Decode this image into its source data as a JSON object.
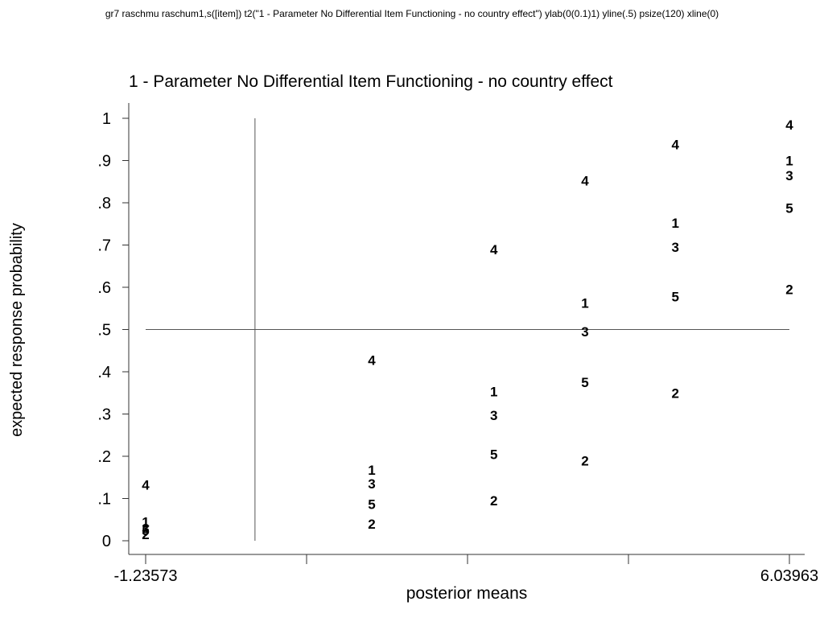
{
  "command_text": "gr7  raschmu raschum1,s([item]) t2(\"1 - Parameter No Differential Item Functioning - no country effect\") ylab(0(0.1)1) yline(.5) psize(120)  xline(0)",
  "chart_data": {
    "type": "scatter",
    "title": "1 - Parameter No Differential Item Functioning - no country effect",
    "xlabel": "posterior means",
    "ylabel": "expected response probability",
    "xlim": [
      -1.23573,
      6.03963
    ],
    "x_tick_labels": [
      "-1.23573",
      "6.03963"
    ],
    "x_minor_ticks": [
      0.58311,
      2.40195,
      4.22079
    ],
    "ylim": [
      0,
      1
    ],
    "y_tick_values": [
      0,
      0.1,
      0.2,
      0.3,
      0.4,
      0.5,
      0.6,
      0.7,
      0.8,
      0.9,
      1
    ],
    "y_tick_labels": [
      "0",
      ".1",
      ".2",
      ".3",
      ".4",
      ".5",
      ".6",
      ".7",
      ".8",
      ".9",
      "1"
    ],
    "yline": 0.5,
    "xline": 0,
    "grid": false,
    "marker_symbols": "item number",
    "series": [
      {
        "name": "1",
        "x": [
          -1.23573,
          1.32,
          2.7,
          3.73,
          4.75,
          6.03963
        ],
        "y": [
          0.045,
          0.168,
          0.353,
          0.563,
          0.752,
          0.9
        ]
      },
      {
        "name": "2",
        "x": [
          -1.23573,
          1.32,
          2.7,
          3.73,
          4.75,
          6.03963
        ],
        "y": [
          0.015,
          0.04,
          0.095,
          0.19,
          0.35,
          0.595
        ]
      },
      {
        "name": "3",
        "x": [
          -1.23573,
          1.32,
          2.7,
          3.73,
          4.75,
          6.03963
        ],
        "y": [
          0.03,
          0.135,
          0.297,
          0.495,
          0.695,
          0.865
        ]
      },
      {
        "name": "4",
        "x": [
          -1.23573,
          1.32,
          2.7,
          3.73,
          4.75,
          6.03963
        ],
        "y": [
          0.132,
          0.428,
          0.69,
          0.852,
          0.938,
          0.985
        ]
      },
      {
        "name": "5",
        "x": [
          -1.23573,
          1.32,
          2.7,
          3.73,
          4.75,
          6.03963
        ],
        "y": [
          0.025,
          0.087,
          0.205,
          0.375,
          0.578,
          0.788
        ]
      }
    ]
  }
}
